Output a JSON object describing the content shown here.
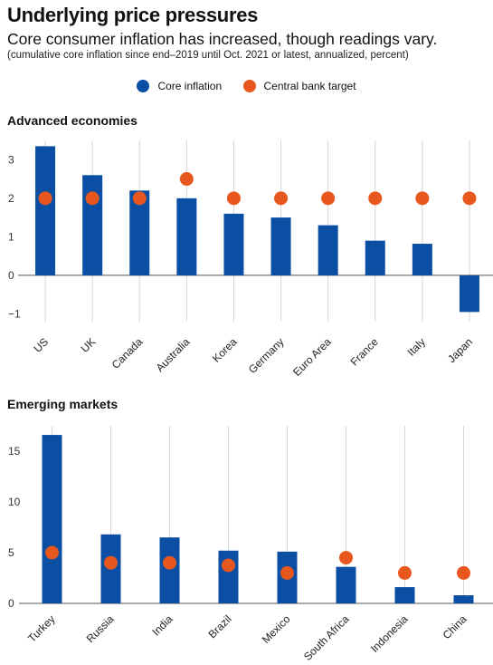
{
  "header": {
    "title": "Underlying price pressures",
    "subtitle": "Core consumer inflation has increased, though readings vary.",
    "note": "(cumulative core inflation since end–2019 until Oct. 2021 or latest, annualized, percent)"
  },
  "legend": {
    "items": [
      {
        "label": "Core inflation",
        "color": "#0a4fa3",
        "shape": "circle"
      },
      {
        "label": "Central bank target",
        "color": "#e8581e",
        "shape": "circle"
      }
    ]
  },
  "chart_data": [
    {
      "type": "bar",
      "title": "Advanced economies",
      "categories": [
        "US",
        "UK",
        "Canada",
        "Australia",
        "Korea",
        "Germany",
        "Euro Area",
        "France",
        "Italy",
        "Japan"
      ],
      "series": [
        {
          "name": "Core inflation",
          "type": "bar",
          "color": "#0a4fa3",
          "values": [
            3.35,
            2.6,
            2.2,
            2.0,
            1.6,
            1.5,
            1.3,
            0.9,
            0.82,
            -0.95
          ]
        },
        {
          "name": "Central bank target",
          "type": "dot",
          "color": "#e8581e",
          "values": [
            2,
            2,
            2,
            2.5,
            2,
            2,
            2,
            2,
            2,
            2
          ]
        }
      ],
      "yticks": [
        -1,
        0,
        1,
        2,
        3
      ],
      "ytick_labels": [
        "−1",
        "0",
        "1",
        "2",
        "3"
      ],
      "ylim": [
        -1.2,
        3.5
      ],
      "xlabel": "",
      "ylabel": "",
      "grid": "vertical"
    },
    {
      "type": "bar",
      "title": "Emerging markets",
      "categories": [
        "Turkey",
        "Russia",
        "India",
        "Brazil",
        "Mexico",
        "South Africa",
        "Indonesia",
        "China"
      ],
      "series": [
        {
          "name": "Core inflation",
          "type": "bar",
          "color": "#0a4fa3",
          "values": [
            16.6,
            6.8,
            6.5,
            5.2,
            5.1,
            3.6,
            1.6,
            0.8
          ]
        },
        {
          "name": "Central bank target",
          "type": "dot",
          "color": "#e8581e",
          "values": [
            5,
            4,
            4,
            3.75,
            3,
            4.5,
            3,
            3
          ]
        }
      ],
      "yticks": [
        0,
        5,
        10,
        15
      ],
      "ytick_labels": [
        "0",
        "5",
        "10",
        "15"
      ],
      "ylim": [
        0,
        17.5
      ],
      "xlabel": "",
      "ylabel": "",
      "grid": "vertical"
    }
  ]
}
